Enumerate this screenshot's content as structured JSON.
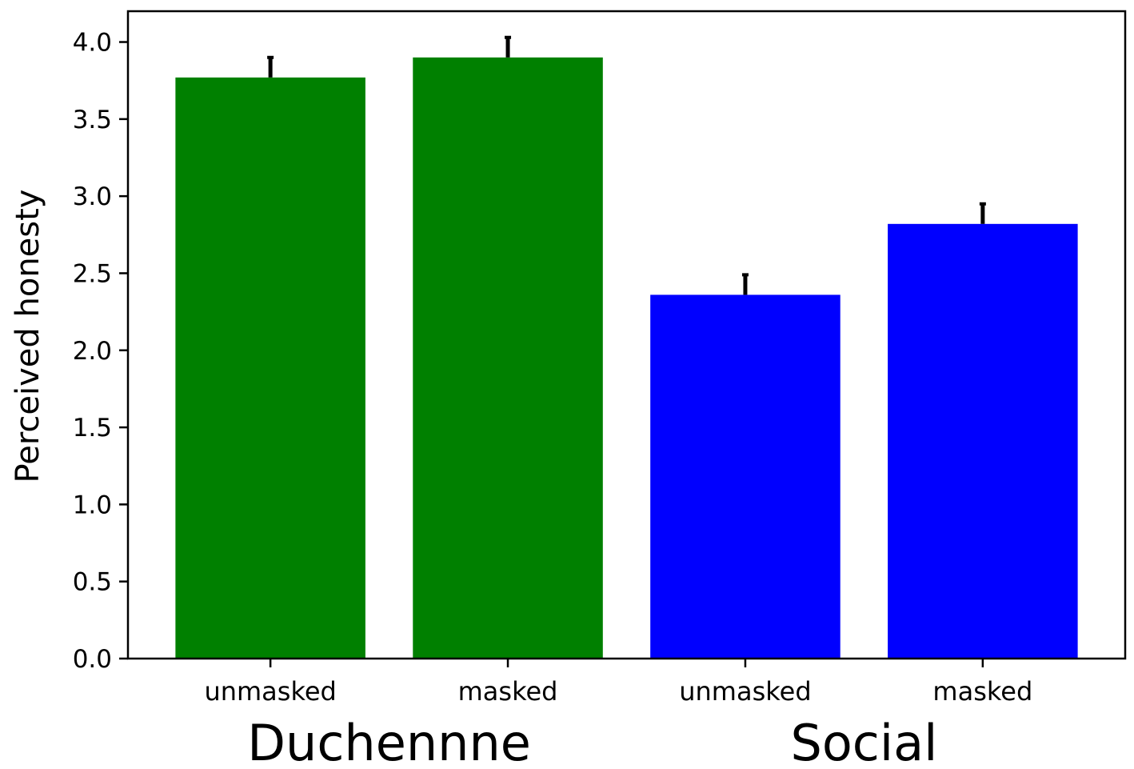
{
  "chart_data": {
    "type": "bar",
    "title": "",
    "xlabel": "",
    "ylabel": "Perceived honesty",
    "ylim": [
      0,
      4.2
    ],
    "yticks": [
      "0.0",
      "0.5",
      "1.0",
      "1.5",
      "2.0",
      "2.5",
      "3.0",
      "3.5",
      "4.0"
    ],
    "grid": false,
    "legend": "none",
    "groups": [
      {
        "label": "Duchennne",
        "color": "#008000"
      },
      {
        "label": "Social",
        "color": "#0000ff"
      }
    ],
    "categories": [
      "unmasked",
      "masked",
      "unmasked",
      "masked"
    ],
    "bars": [
      {
        "category": "unmasked",
        "group": "Duchennne",
        "value": 3.77,
        "error": 0.13,
        "color": "#008000"
      },
      {
        "category": "masked",
        "group": "Duchennne",
        "value": 3.9,
        "error": 0.13,
        "color": "#008000"
      },
      {
        "category": "unmasked",
        "group": "Social",
        "value": 2.36,
        "error": 0.13,
        "color": "#0000ff"
      },
      {
        "category": "masked",
        "group": "Social",
        "value": 2.82,
        "error": 0.13,
        "color": "#0000ff"
      }
    ]
  }
}
